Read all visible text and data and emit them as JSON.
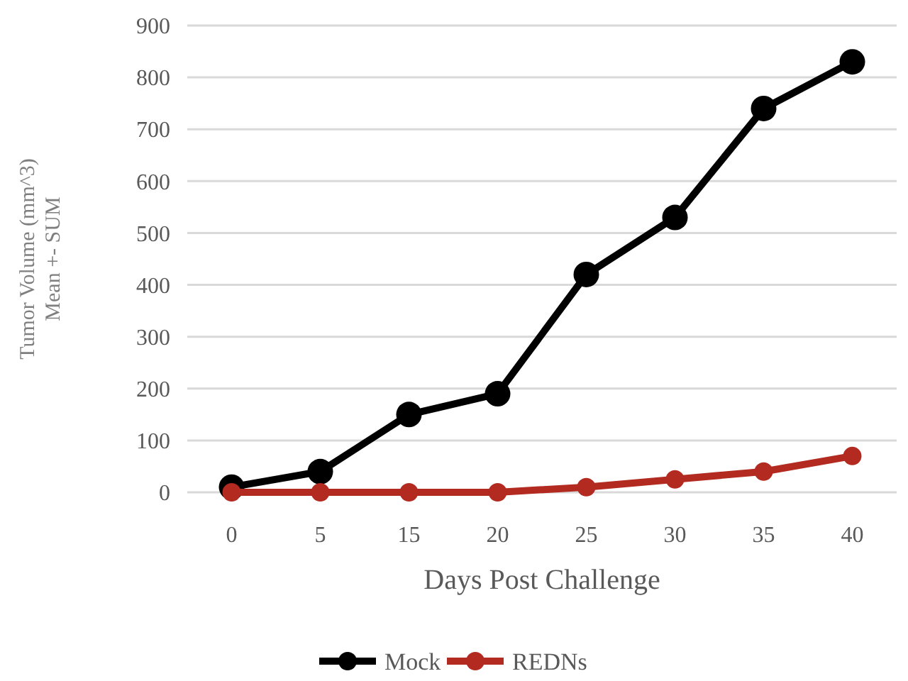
{
  "chart_data": {
    "type": "line",
    "xlabel": "Days Post Challenge",
    "ylabel": "Tumor Volume  (mm^3)\nMean +- SUM",
    "categories": [
      "0",
      "5",
      "15",
      "20",
      "25",
      "30",
      "35",
      "40"
    ],
    "series": [
      {
        "name": "Mock",
        "color": "#000000",
        "values": [
          10,
          40,
          150,
          190,
          420,
          530,
          740,
          830
        ]
      },
      {
        "name": "REDNs",
        "color": "#b22a20",
        "values": [
          0,
          0,
          0,
          0,
          10,
          25,
          40,
          70
        ]
      }
    ],
    "ylim": [
      0,
      900
    ],
    "yticks": [
      0,
      100,
      200,
      300,
      400,
      500,
      600,
      700,
      800,
      900
    ],
    "grid": "y",
    "legend": "bottom",
    "marker": "circle",
    "line_style": "solid"
  }
}
